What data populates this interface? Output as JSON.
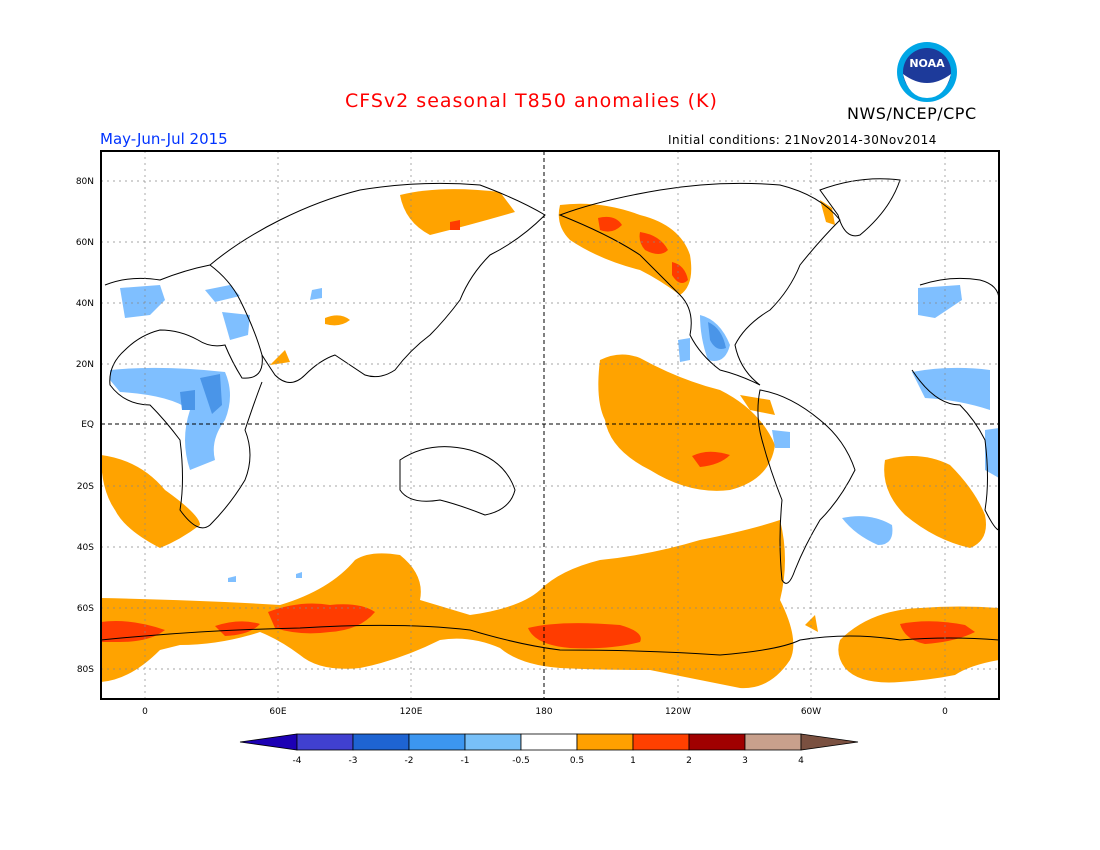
{
  "header": {
    "title": "CFSv2 seasonal T850 anomalies (K)",
    "period": "May-Jun-Jul 2015",
    "initial_conditions": "Initial conditions: 21Nov2014-30Nov2014",
    "agency": "NWS/NCEP/CPC",
    "logo_text": "NOAA",
    "logo_icon": "noaa-logo-icon"
  },
  "colors": {
    "title": "#ff0000",
    "period": "#0033ff",
    "warm_05_1": "#ffa300",
    "warm_1_2": "#ff3c00",
    "cool_05_1": "#7fbfff",
    "cool_1_2": "#4a95e8"
  },
  "axes": {
    "lat_labels": [
      "80N",
      "60N",
      "40N",
      "20N",
      "EQ",
      "20S",
      "40S",
      "60S",
      "80S"
    ],
    "lon_labels": [
      "0",
      "60E",
      "120E",
      "180",
      "120W",
      "60W",
      "0"
    ]
  },
  "colorbar": {
    "labels": [
      "-4",
      "-3",
      "-2",
      "-1",
      "-0.5",
      "0.5",
      "1",
      "2",
      "3",
      "4"
    ],
    "colors": [
      "#1c00b4",
      "#4040d0",
      "#1e64d2",
      "#3c96f0",
      "#78c0f8",
      "#ffffff",
      "#ffa000",
      "#ff4000",
      "#a00000",
      "#c8a08c",
      "#7a5040"
    ]
  }
}
